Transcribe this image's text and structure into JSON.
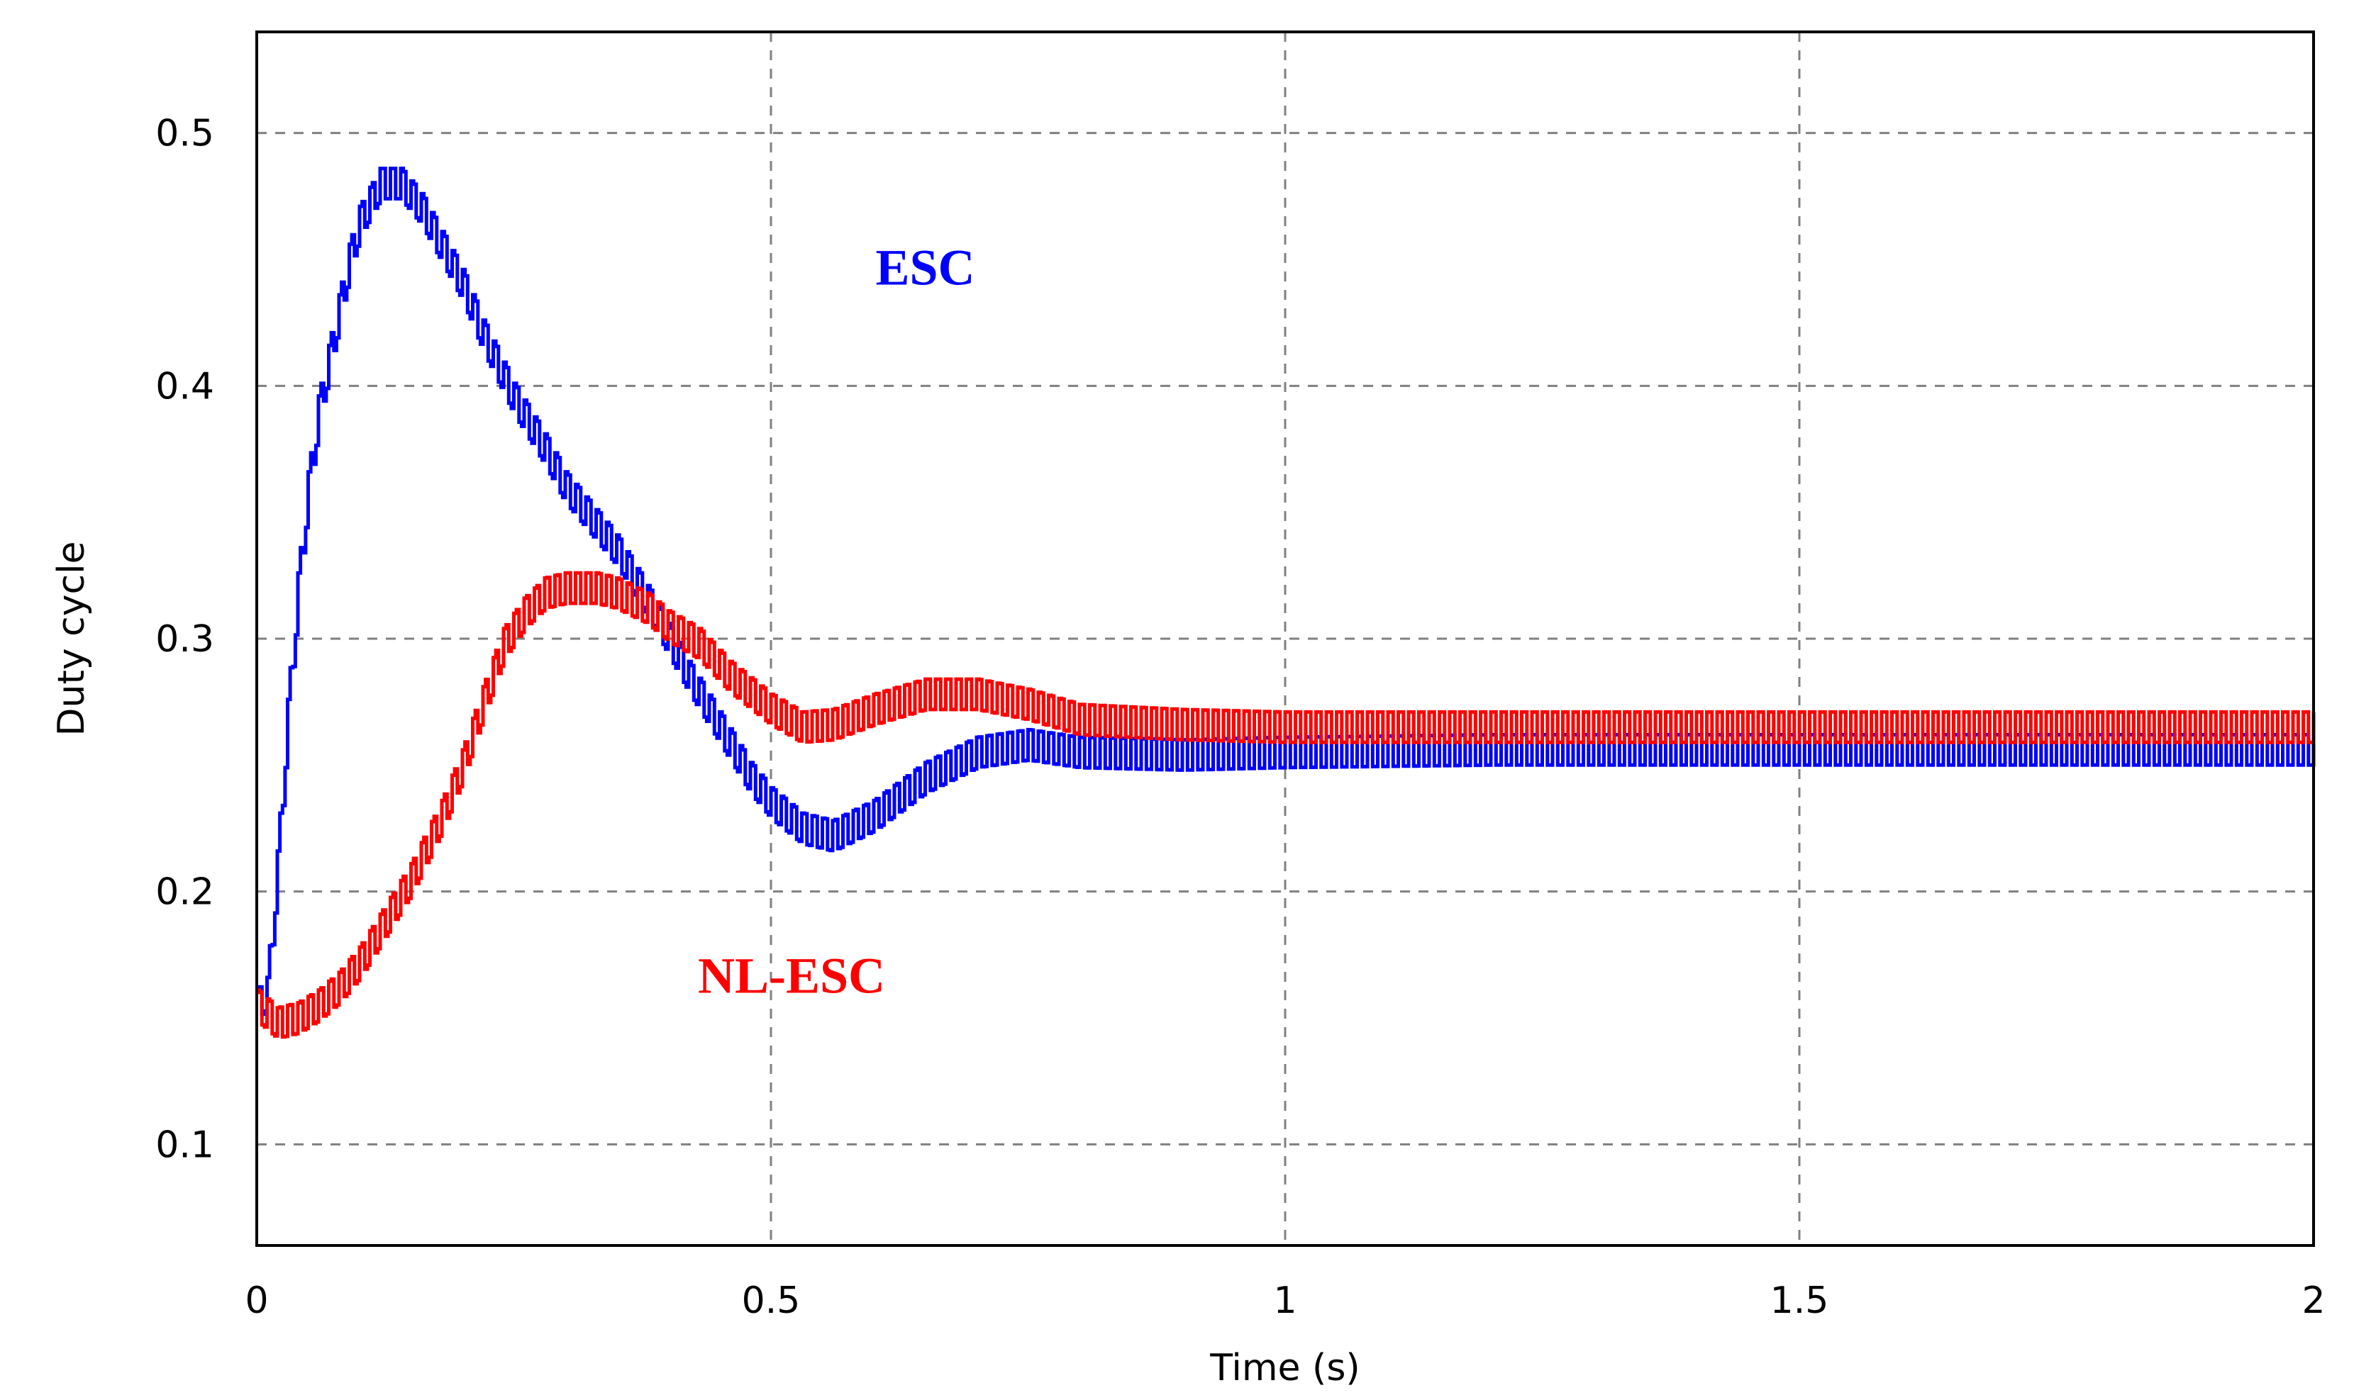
{
  "chart_data": {
    "type": "line",
    "title": "",
    "xlabel": "Time (s)",
    "ylabel": "Duty cycle",
    "xlim": [
      0,
      2
    ],
    "ylim": [
      0.06,
      0.54
    ],
    "xticks": [
      0,
      0.5,
      1,
      1.5,
      2
    ],
    "xtick_labels": [
      "0",
      "0.5",
      "1",
      "1.5",
      "2"
    ],
    "yticks": [
      0.1,
      0.2,
      0.3,
      0.4,
      0.5
    ],
    "ytick_labels": [
      "0.1",
      "0.2",
      "0.3",
      "0.4",
      "0.5"
    ],
    "grid": true,
    "legend": "none",
    "series": [
      {
        "name": "ESC",
        "color": "#0000ff",
        "ripple": 0.012,
        "x": [
          0,
          0.01,
          0.02,
          0.03,
          0.04,
          0.05,
          0.06,
          0.07,
          0.08,
          0.09,
          0.1,
          0.12,
          0.14,
          0.16,
          0.18,
          0.2,
          0.22,
          0.25,
          0.28,
          0.3,
          0.33,
          0.35,
          0.38,
          0.4,
          0.42,
          0.45,
          0.48,
          0.5,
          0.53,
          0.56,
          0.6,
          0.65,
          0.7,
          0.75,
          0.8,
          0.9,
          1.0,
          1.2,
          1.5,
          1.8,
          2.0
        ],
        "y": [
          0.155,
          0.16,
          0.21,
          0.27,
          0.32,
          0.36,
          0.39,
          0.41,
          0.43,
          0.45,
          0.465,
          0.48,
          0.48,
          0.47,
          0.455,
          0.44,
          0.42,
          0.395,
          0.375,
          0.36,
          0.345,
          0.335,
          0.315,
          0.3,
          0.285,
          0.265,
          0.245,
          0.235,
          0.225,
          0.222,
          0.23,
          0.245,
          0.255,
          0.258,
          0.255,
          0.254,
          0.255,
          0.256,
          0.256,
          0.256,
          0.256
        ]
      },
      {
        "name": "NL-ESC",
        "color": "#ff0000",
        "ripple": 0.012,
        "x": [
          0,
          0.02,
          0.04,
          0.06,
          0.08,
          0.1,
          0.12,
          0.15,
          0.18,
          0.2,
          0.22,
          0.24,
          0.26,
          0.28,
          0.3,
          0.33,
          0.35,
          0.38,
          0.4,
          0.43,
          0.46,
          0.5,
          0.53,
          0.56,
          0.6,
          0.65,
          0.7,
          0.75,
          0.8,
          0.9,
          1.0,
          1.2,
          1.5,
          1.8,
          2.0
        ],
        "y": [
          0.155,
          0.148,
          0.15,
          0.155,
          0.162,
          0.172,
          0.185,
          0.205,
          0.23,
          0.25,
          0.275,
          0.298,
          0.31,
          0.318,
          0.32,
          0.32,
          0.318,
          0.312,
          0.305,
          0.298,
          0.285,
          0.272,
          0.265,
          0.266,
          0.272,
          0.278,
          0.278,
          0.274,
          0.268,
          0.266,
          0.265,
          0.265,
          0.265,
          0.265,
          0.265
        ]
      }
    ],
    "annotations": [
      {
        "text": "ESC",
        "x": 0.65,
        "y": 0.44,
        "color": "#0000ff"
      },
      {
        "text": "NL-ESC",
        "x": 0.52,
        "y": 0.16,
        "color": "#ff0000"
      }
    ]
  }
}
